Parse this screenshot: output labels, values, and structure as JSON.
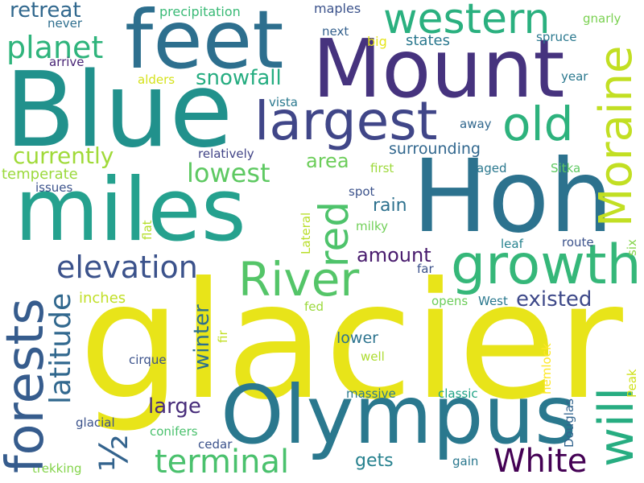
{
  "words": [
    {
      "text": "glacier",
      "color": "#e8e419"
    },
    {
      "text": "Hoh",
      "color": "#2c728e"
    },
    {
      "text": "Blue",
      "color": "#21918c"
    },
    {
      "text": "Mount",
      "color": "#46337e"
    },
    {
      "text": "miles",
      "color": "#25a18e"
    },
    {
      "text": "Olympus",
      "color": "#2a788e"
    },
    {
      "text": "feet",
      "color": "#2d6f8e"
    },
    {
      "text": "largest",
      "color": "#404688"
    },
    {
      "text": "western",
      "color": "#2ab07f"
    },
    {
      "text": "growth",
      "color": "#35b779"
    },
    {
      "text": "River",
      "color": "#54c568"
    },
    {
      "text": "old",
      "color": "#2db27d"
    },
    {
      "text": "Moraine",
      "color": "#c2df23"
    },
    {
      "text": "forests",
      "color": "#365c8d"
    },
    {
      "text": "will",
      "color": "#27ad81"
    },
    {
      "text": "½",
      "color": "#33638d"
    },
    {
      "text": "terminal",
      "color": "#4ac16d"
    },
    {
      "text": "White",
      "color": "#440154"
    },
    {
      "text": "red",
      "color": "#4ec36b"
    },
    {
      "text": "latitude",
      "color": "#31688e"
    },
    {
      "text": "elevation",
      "color": "#3b528b"
    },
    {
      "text": "planet",
      "color": "#2fb47c"
    },
    {
      "text": "lowest",
      "color": "#5ec962"
    },
    {
      "text": "currently",
      "color": "#a0da39"
    },
    {
      "text": "snowfall",
      "color": "#26ad81"
    },
    {
      "text": "retreat",
      "color": "#31688e"
    },
    {
      "text": "winter",
      "color": "#2d708e"
    },
    {
      "text": "existed",
      "color": "#3e4989"
    },
    {
      "text": "amount",
      "color": "#481b6d"
    },
    {
      "text": "area",
      "color": "#6ccd5a"
    },
    {
      "text": "large",
      "color": "#472c7a"
    },
    {
      "text": "rain",
      "color": "#2d718e"
    },
    {
      "text": "surrounding",
      "color": "#31678e"
    },
    {
      "text": "gets",
      "color": "#26818e"
    },
    {
      "text": "states",
      "color": "#2a788e"
    },
    {
      "text": "lower",
      "color": "#2c738e"
    },
    {
      "text": "inches",
      "color": "#c0df25"
    },
    {
      "text": "temperate",
      "color": "#9bd93c"
    },
    {
      "text": "precipitation",
      "color": "#3aba76"
    },
    {
      "text": "maples",
      "color": "#3b528b"
    },
    {
      "text": "never",
      "color": "#2e6e8e"
    },
    {
      "text": "next",
      "color": "#34608d"
    },
    {
      "text": "big",
      "color": "#e5e419"
    },
    {
      "text": "arrive",
      "color": "#482475"
    },
    {
      "text": "alders",
      "color": "#d5e21a"
    },
    {
      "text": "vista",
      "color": "#2a788e"
    },
    {
      "text": "relatively",
      "color": "#414487"
    },
    {
      "text": "first",
      "color": "#9dd93b"
    },
    {
      "text": "issues",
      "color": "#3b528b"
    },
    {
      "text": "spot",
      "color": "#3b528b"
    },
    {
      "text": "aged",
      "color": "#2a788e"
    },
    {
      "text": "Sitka",
      "color": "#5ec962"
    },
    {
      "text": "milky",
      "color": "#70cf57"
    },
    {
      "text": "Lateral",
      "color": "#b8de29"
    },
    {
      "text": "flat",
      "color": "#b5de2b"
    },
    {
      "text": "leaf",
      "color": "#26828e"
    },
    {
      "text": "route",
      "color": "#3b528b"
    },
    {
      "text": "six",
      "color": "#84d44b"
    },
    {
      "text": "far",
      "color": "#3b528b"
    },
    {
      "text": "opens",
      "color": "#6ccd5a"
    },
    {
      "text": "West",
      "color": "#2a788e"
    },
    {
      "text": "fed",
      "color": "#9bd93c"
    },
    {
      "text": "fir",
      "color": "#c2df23"
    },
    {
      "text": "well",
      "color": "#addc30"
    },
    {
      "text": "cirque",
      "color": "#3b528b"
    },
    {
      "text": "hemlock",
      "color": "#fde725"
    },
    {
      "text": "Peak",
      "color": "#d0e11c"
    },
    {
      "text": "Douglas",
      "color": "#32648e"
    },
    {
      "text": "massive",
      "color": "#2a788e"
    },
    {
      "text": "classic",
      "color": "#20a386"
    },
    {
      "text": "glacial",
      "color": "#3b528b"
    },
    {
      "text": "conifers",
      "color": "#4ac16d"
    },
    {
      "text": "cedar",
      "color": "#3b528b"
    },
    {
      "text": "trekking",
      "color": "#84d44b"
    },
    {
      "text": "gain",
      "color": "#2a788e"
    },
    {
      "text": "gnarly",
      "color": "#7ad151"
    },
    {
      "text": "spruce",
      "color": "#2a788e"
    },
    {
      "text": "year",
      "color": "#2a788e"
    },
    {
      "text": "away",
      "color": "#31688e"
    }
  ]
}
